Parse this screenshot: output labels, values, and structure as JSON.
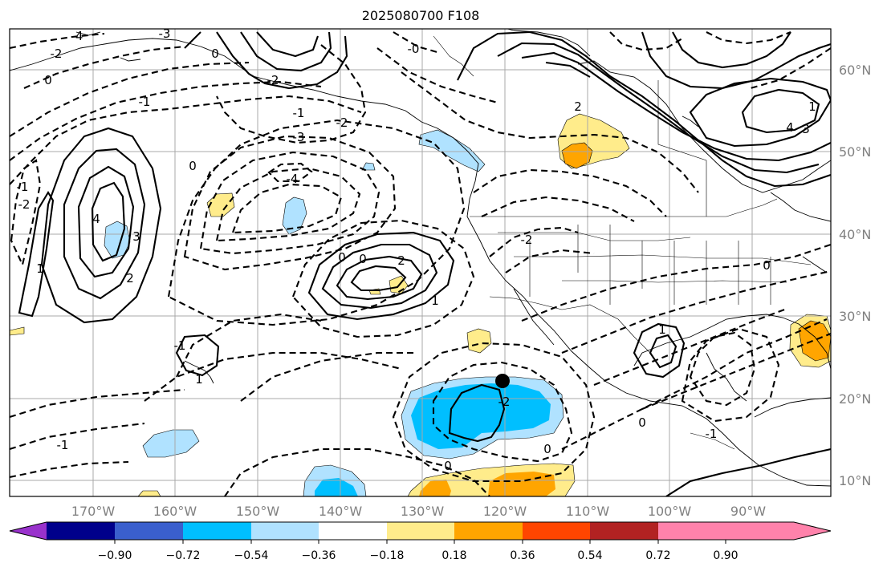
{
  "title": "2025080700 F108",
  "lon_labels": [
    "170°W",
    "160°W",
    "150°W",
    "140°W",
    "130°W",
    "120°W",
    "110°W",
    "100°W",
    "90°W"
  ],
  "lat_labels": [
    "60°N",
    "50°N",
    "40°N",
    "30°N",
    "20°N",
    "10°N"
  ],
  "colorbar": {
    "ticks": [
      "−0.90",
      "−0.72",
      "−0.54",
      "−0.36",
      "−0.18",
      "0.18",
      "0.36",
      "0.54",
      "0.72",
      "0.90"
    ],
    "colors": [
      "#9932cc",
      "#00008b",
      "#3a5fcd",
      "#00bfff",
      "#b0e2ff",
      "#ffffff",
      "#ffec8b",
      "#ffa500",
      "#ff4500",
      "#b22222",
      "#ff82ab"
    ]
  },
  "contour_labels": [
    "0",
    "-2",
    "-1",
    "-3",
    "-4",
    "-2",
    "-1",
    "0",
    "1",
    "2",
    "3",
    "4",
    "-1",
    "-2",
    "-3",
    "-4",
    "0",
    "1",
    "2",
    "0",
    "-0",
    "-1",
    "-2",
    "0",
    "1",
    "2",
    "3",
    "4",
    "-2",
    "0",
    "1",
    "0",
    "-1",
    "1",
    "-2",
    "0",
    "-1",
    "0"
  ],
  "marker": "storm-center"
}
